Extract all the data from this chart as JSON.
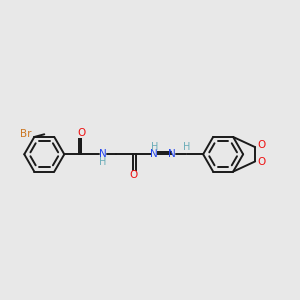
{
  "bg_color": "#e8e8e8",
  "bond_color": "#1a1a1a",
  "br_color": "#cc7722",
  "o_color": "#ee1111",
  "n_color": "#2244ee",
  "h_color": "#6aacb8",
  "lw": 1.4,
  "xlim": [
    0,
    10.5
  ],
  "ylim": [
    3.0,
    7.5
  ],
  "figsize": [
    3.0,
    3.0
  ],
  "dpi": 100,
  "r_hex": 0.7,
  "fs": 7.5
}
